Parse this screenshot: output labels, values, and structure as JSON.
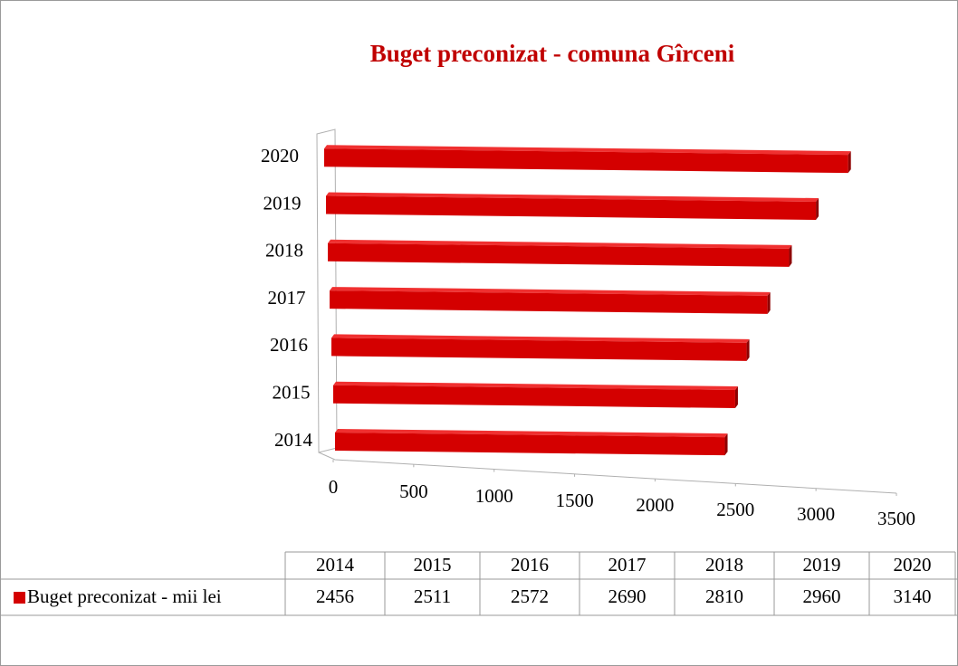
{
  "chart_data": {
    "type": "bar3d_horizontal",
    "title": "Buget preconizat - comuna  Gîrceni",
    "categories": [
      "2014",
      "2015",
      "2016",
      "2017",
      "2018",
      "2019",
      "2020"
    ],
    "series": [
      {
        "name": "Buget preconizat - mii lei",
        "color": "#d40000",
        "values": [
          2456,
          2511,
          2572,
          2690,
          2810,
          2960,
          3140
        ]
      }
    ],
    "xlim": [
      0,
      3500
    ],
    "xticks": [
      0,
      500,
      1000,
      1500,
      2000,
      2500,
      3000,
      3500
    ],
    "data_table": true
  }
}
